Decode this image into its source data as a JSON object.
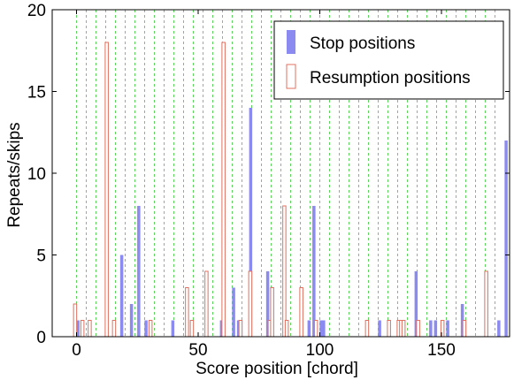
{
  "chart_data": {
    "type": "bar",
    "xlabel": "Score position [chord]",
    "ylabel": "Repeats/skips",
    "xlim": [
      -10,
      178
    ],
    "ylim": [
      0,
      20
    ],
    "xticks": [
      0,
      50,
      100,
      150
    ],
    "xtick_labels": [
      "0",
      "50",
      "100",
      "150"
    ],
    "yticks": [
      0,
      5,
      10,
      15,
      20
    ],
    "ytick_labels": [
      "0",
      "5",
      "10",
      "15",
      "20"
    ],
    "grid": "vertical dashed lines every 4 chords",
    "grid_lines_x": [
      0,
      4,
      8,
      12,
      16,
      20,
      24,
      28,
      32,
      36,
      40,
      44,
      48,
      52,
      56,
      60,
      64,
      68,
      72,
      76,
      80,
      84,
      88,
      92,
      96,
      100,
      104,
      108,
      112,
      116,
      120,
      124,
      128,
      132,
      136,
      140,
      144,
      148,
      152,
      156,
      160,
      164,
      168,
      172
    ],
    "legend_position": "top-right",
    "series": [
      {
        "name": "Stop positions",
        "style": "filled",
        "color": "#8a8af0",
        "points": [
          {
            "x": 0,
            "y": 1
          },
          {
            "x": 18,
            "y": 5
          },
          {
            "x": 22,
            "y": 2
          },
          {
            "x": 25,
            "y": 8
          },
          {
            "x": 28,
            "y": 1
          },
          {
            "x": 39,
            "y": 1
          },
          {
            "x": 59,
            "y": 1
          },
          {
            "x": 64,
            "y": 3
          },
          {
            "x": 66,
            "y": 1
          },
          {
            "x": 67,
            "y": 1
          },
          {
            "x": 71,
            "y": 14
          },
          {
            "x": 78,
            "y": 4
          },
          {
            "x": 85,
            "y": 1
          },
          {
            "x": 95,
            "y": 1
          },
          {
            "x": 97,
            "y": 8
          },
          {
            "x": 100,
            "y": 1
          },
          {
            "x": 101,
            "y": 1
          },
          {
            "x": 124,
            "y": 1
          },
          {
            "x": 139,
            "y": 4
          },
          {
            "x": 145,
            "y": 1
          },
          {
            "x": 147,
            "y": 1
          },
          {
            "x": 152,
            "y": 1
          },
          {
            "x": 158,
            "y": 2
          },
          {
            "x": 159,
            "y": 1
          },
          {
            "x": 173,
            "y": 1
          },
          {
            "x": 176,
            "y": 12
          }
        ]
      },
      {
        "name": "Resumption positions",
        "style": "outline",
        "color": "#e0705f",
        "points": [
          {
            "x": 0,
            "y": 2
          },
          {
            "x": 3,
            "y": 1
          },
          {
            "x": 6,
            "y": 1
          },
          {
            "x": 13,
            "y": 18
          },
          {
            "x": 16,
            "y": 1
          },
          {
            "x": 31,
            "y": 1
          },
          {
            "x": 46,
            "y": 3
          },
          {
            "x": 48,
            "y": 1
          },
          {
            "x": 54,
            "y": 4
          },
          {
            "x": 61,
            "y": 18
          },
          {
            "x": 68,
            "y": 1
          },
          {
            "x": 72,
            "y": 4
          },
          {
            "x": 80,
            "y": 1
          },
          {
            "x": 81,
            "y": 3
          },
          {
            "x": 86,
            "y": 8
          },
          {
            "x": 87,
            "y": 1
          },
          {
            "x": 93,
            "y": 3
          },
          {
            "x": 99,
            "y": 1
          },
          {
            "x": 120,
            "y": 1
          },
          {
            "x": 129,
            "y": 1
          },
          {
            "x": 133,
            "y": 1
          },
          {
            "x": 134,
            "y": 1
          },
          {
            "x": 135,
            "y": 1
          },
          {
            "x": 141,
            "y": 1
          },
          {
            "x": 151,
            "y": 1
          },
          {
            "x": 160,
            "y": 1
          },
          {
            "x": 169,
            "y": 4
          }
        ]
      }
    ]
  }
}
